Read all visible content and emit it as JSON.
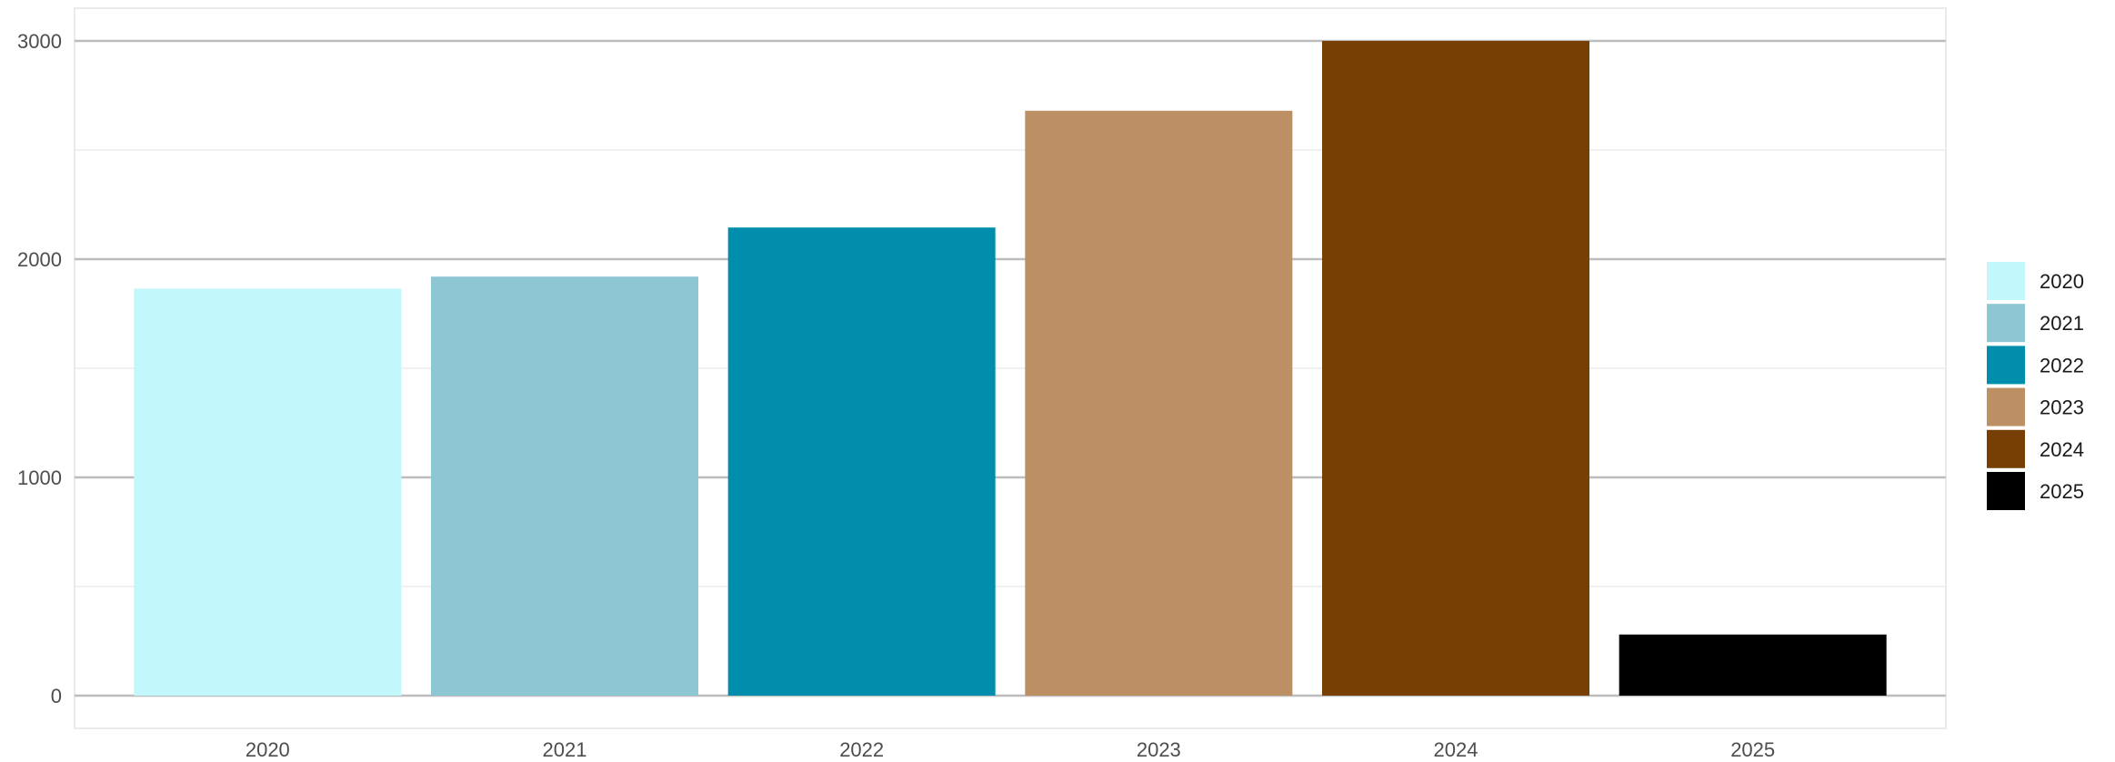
{
  "chart_data": {
    "type": "bar",
    "title": "",
    "xlabel": "",
    "ylabel": "",
    "categories": [
      "2020",
      "2021",
      "2022",
      "2023",
      "2024",
      "2025"
    ],
    "values": [
      1865,
      1920,
      2145,
      2680,
      3000,
      280
    ],
    "colors": [
      "#C2F7FB",
      "#8FC6D3",
      "#018EAC",
      "#BD8F65",
      "#773F03",
      "#000000"
    ],
    "ylim": [
      -150,
      3150
    ],
    "yticks": [
      0,
      1000,
      2000,
      3000
    ],
    "grid": true,
    "legend": {
      "position": "right",
      "entries": [
        "2020",
        "2021",
        "2022",
        "2023",
        "2024",
        "2025"
      ]
    }
  }
}
